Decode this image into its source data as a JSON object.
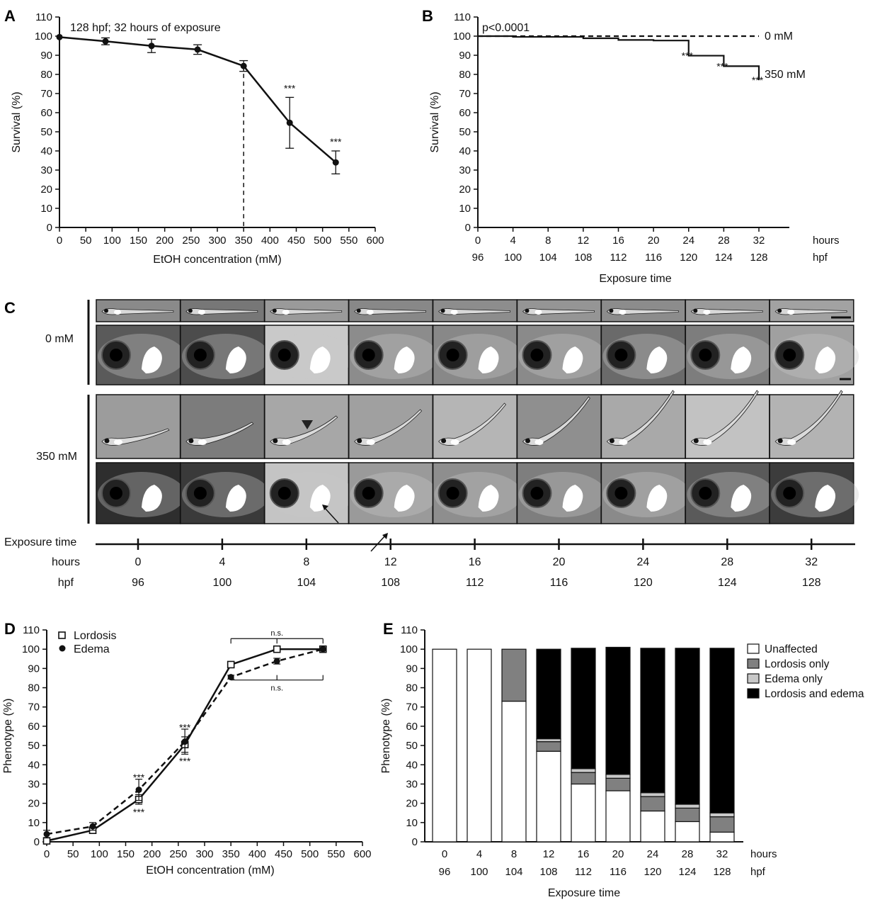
{
  "panels": {
    "A": "A",
    "B": "B",
    "C": "C",
    "D": "D",
    "E": "E"
  },
  "chart_data": [
    {
      "id": "A",
      "type": "line",
      "annotation": "128 hpf; 32 hours of exposure",
      "xlabel": "EtOH concentration (mM)",
      "ylabel": "Survival (%)",
      "xlim": [
        0,
        600
      ],
      "ylim": [
        0,
        110
      ],
      "xticks": [
        0,
        50,
        100,
        150,
        200,
        250,
        300,
        350,
        400,
        450,
        500,
        550,
        600
      ],
      "yticks": [
        0,
        10,
        20,
        30,
        40,
        50,
        60,
        70,
        80,
        90,
        100,
        110
      ],
      "reference_line_x": 350,
      "points": [
        {
          "x": 0,
          "y": 99.5,
          "err": 0
        },
        {
          "x": 87.5,
          "y": 97.3,
          "err": 1.8
        },
        {
          "x": 175,
          "y": 94.9,
          "err": 3.5
        },
        {
          "x": 262.5,
          "y": 93.0,
          "err": 2.5
        },
        {
          "x": 350,
          "y": 84.4,
          "err": 2.8
        },
        {
          "x": 437.5,
          "y": 54.7,
          "err": 13.3,
          "sig": "***"
        },
        {
          "x": 525,
          "y": 34.0,
          "err": 6.0,
          "sig": "***"
        }
      ]
    },
    {
      "id": "B",
      "type": "line",
      "pvalue": "p<0.0001",
      "xlabel": "Exposure time",
      "ylabel": "Survival (%)",
      "xlim": [
        0,
        32
      ],
      "ylim": [
        0,
        110
      ],
      "yticks": [
        0,
        10,
        20,
        30,
        40,
        50,
        60,
        70,
        80,
        90,
        100,
        110
      ],
      "hours": [
        "0",
        "4",
        "8",
        "12",
        "16",
        "20",
        "24",
        "28",
        "32"
      ],
      "hpf": [
        "96",
        "100",
        "104",
        "108",
        "112",
        "116",
        "120",
        "124",
        "128"
      ],
      "hours_label": "hours",
      "hpf_label": "hpf",
      "series": [
        {
          "name": "0 mM",
          "style": "dashed",
          "x": [
            0,
            33
          ],
          "y": [
            100,
            100
          ]
        },
        {
          "name": "350 mM",
          "style": "solid",
          "steps": [
            [
              0,
              100
            ],
            [
              4,
              99.6
            ],
            [
              12,
              98.9
            ],
            [
              16,
              98.0
            ],
            [
              20,
              97.7
            ],
            [
              24,
              89.8
            ],
            [
              28,
              84.3
            ],
            [
              32,
              77.0
            ]
          ]
        }
      ],
      "sig_marks": [
        {
          "x": 24,
          "y": 89.8,
          "text": "***"
        },
        {
          "x": 28,
          "y": 84.3,
          "text": "***"
        },
        {
          "x": 32,
          "y": 77.0,
          "text": "***"
        }
      ]
    },
    {
      "id": "D",
      "type": "line",
      "xlabel": "EtOH concentration (mM)",
      "ylabel": "Phenotype (%)",
      "xlim": [
        0,
        600
      ],
      "ylim": [
        0,
        110
      ],
      "xticks": [
        0,
        50,
        100,
        150,
        200,
        250,
        300,
        350,
        400,
        450,
        500,
        550,
        600
      ],
      "yticks": [
        0,
        10,
        20,
        30,
        40,
        50,
        60,
        70,
        80,
        90,
        100,
        110
      ],
      "series": [
        {
          "name": "Lordosis",
          "marker": "square-open",
          "style": "solid",
          "x": [
            0,
            87.5,
            175,
            262.5,
            350,
            437.5,
            525
          ],
          "y": [
            0.5,
            6.0,
            22.0,
            50.5,
            92.0,
            100.0,
            100.0
          ],
          "err": [
            1.0,
            1.5,
            2.5,
            4.0,
            1.0,
            0.5,
            0.5
          ]
        },
        {
          "name": "Edema",
          "marker": "circle-filled",
          "style": "dashed",
          "x": [
            0,
            87.5,
            175,
            262.5,
            350,
            437.5,
            525
          ],
          "y": [
            4.0,
            8.0,
            27.0,
            52.0,
            85.5,
            93.8,
            100.0
          ],
          "err": [
            2.0,
            2.0,
            5.5,
            6.5,
            1.0,
            1.5,
            0.5
          ]
        }
      ],
      "sig_marks": [
        {
          "x": 175,
          "y": 33.5,
          "text": "***"
        },
        {
          "x": 175,
          "y": 15.5,
          "text": "***"
        },
        {
          "x": 262.5,
          "y": 59.5,
          "text": "***"
        },
        {
          "x": 262.5,
          "y": 42.0,
          "text": "***"
        }
      ],
      "brackets": [
        {
          "x1": 350,
          "x2": 525,
          "y": 105.5,
          "dir": "down",
          "text": "n.s."
        },
        {
          "x1": 350,
          "x2": 525,
          "y": 84.0,
          "dir": "up",
          "text": "n.s."
        }
      ]
    },
    {
      "id": "E",
      "type": "bar",
      "stacked": true,
      "xlabel": "Exposure time",
      "ylabel": "Phenotype (%)",
      "ylim": [
        0,
        110
      ],
      "yticks": [
        0,
        10,
        20,
        30,
        40,
        50,
        60,
        70,
        80,
        90,
        100,
        110
      ],
      "hours": [
        "0",
        "4",
        "8",
        "12",
        "16",
        "20",
        "24",
        "28",
        "32"
      ],
      "hpf": [
        "96",
        "100",
        "104",
        "108",
        "112",
        "116",
        "120",
        "124",
        "128"
      ],
      "hours_label": "hours",
      "hpf_label": "hpf",
      "series": [
        {
          "name": "Unaffected",
          "color": "#ffffff",
          "values": [
            100,
            100,
            73,
            47,
            30,
            26.5,
            16,
            10.5,
            5
          ]
        },
        {
          "name": "Lordosis only",
          "color": "#808080",
          "values": [
            0,
            0,
            27,
            5,
            6,
            6.5,
            7.5,
            7,
            8
          ]
        },
        {
          "name": "Edema only",
          "color": "#c8c8c8",
          "values": [
            0,
            0,
            0,
            1.5,
            2,
            2,
            2,
            2,
            2
          ]
        },
        {
          "name": "Lordosis and edema",
          "color": "#000000",
          "values": [
            0,
            0,
            0,
            46.5,
            62.5,
            66,
            75,
            81,
            85.5
          ]
        }
      ]
    }
  ],
  "panel_c": {
    "groups": [
      {
        "label": "0 mM"
      },
      {
        "label": "350 mM"
      }
    ],
    "axis_title": "Exposure time",
    "hours_label": "hours",
    "hpf_label": "hpf",
    "hours": [
      "0",
      "4",
      "8",
      "12",
      "16",
      "20",
      "24",
      "28",
      "32"
    ],
    "hpf": [
      "96",
      "100",
      "104",
      "108",
      "112",
      "116",
      "120",
      "124",
      "128"
    ]
  }
}
